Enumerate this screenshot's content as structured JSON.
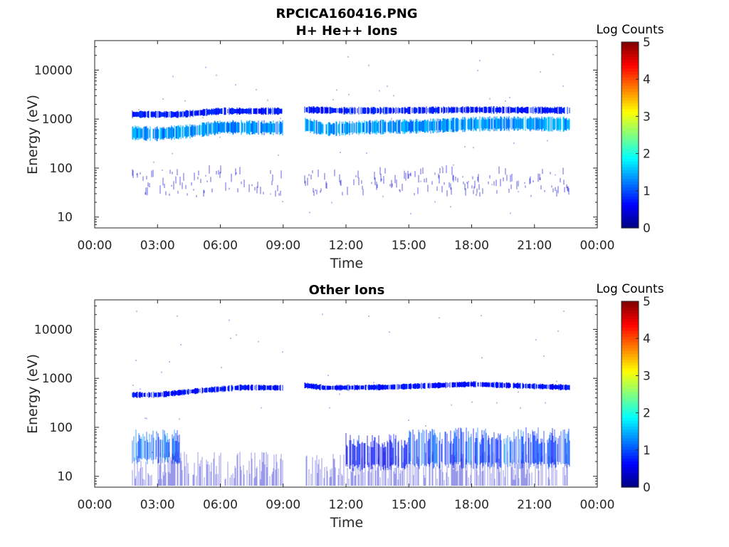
{
  "figure": {
    "filename": "RPCICA160416.PNG"
  },
  "chart_data": [
    {
      "type": "heatmap",
      "title": "H+ He++ Ions",
      "xlabel": "Time",
      "ylabel": "Energy (eV)",
      "x_ticks": [
        "00:00",
        "03:00",
        "06:00",
        "09:00",
        "12:00",
        "15:00",
        "18:00",
        "21:00",
        "00:00"
      ],
      "xlim_hours": [
        0,
        24
      ],
      "y_scale": "log",
      "y_ticks": [
        10,
        100,
        1000,
        10000
      ],
      "ylim": [
        6,
        40000
      ],
      "colorbar": {
        "label": "Log Counts",
        "range": [
          0,
          5
        ],
        "ticks": [
          "0",
          "1",
          "2",
          "3",
          "4",
          "5"
        ]
      },
      "data_coverage_hours": [
        [
          1.8,
          9.0
        ],
        [
          10.0,
          22.7
        ]
      ],
      "bands": [
        {
          "name": "main",
          "points": [
            [
              1.8,
              520
            ],
            [
              3.0,
              500
            ],
            [
              4.5,
              560
            ],
            [
              6.0,
              680
            ],
            [
              9.0,
              660
            ],
            [
              10.0,
              780
            ],
            [
              11.0,
              620
            ],
            [
              13.0,
              680
            ],
            [
              16.0,
              720
            ],
            [
              18.0,
              790
            ],
            [
              20.0,
              810
            ],
            [
              22.7,
              780
            ]
          ],
          "width_dex": 0.12,
          "level": 1.35
        },
        {
          "name": "secondary",
          "points": [
            [
              1.8,
              1250
            ],
            [
              4.0,
              1240
            ],
            [
              6.0,
              1450
            ],
            [
              9.0,
              1450
            ],
            [
              10.0,
              1550
            ],
            [
              12.0,
              1480
            ],
            [
              15.0,
              1500
            ],
            [
              18.0,
              1550
            ],
            [
              22.7,
              1500
            ]
          ],
          "width_dex": 0.06,
          "level": 0.75
        }
      ],
      "low_energy_scatter": {
        "e_min": 25,
        "e_max": 80,
        "level": 0.4
      }
    },
    {
      "type": "heatmap",
      "title": "Other Ions",
      "xlabel": "Time",
      "ylabel": "Energy (eV)",
      "x_ticks": [
        "00:00",
        "03:00",
        "06:00",
        "09:00",
        "12:00",
        "15:00",
        "18:00",
        "21:00",
        "00:00"
      ],
      "xlim_hours": [
        0,
        24
      ],
      "y_scale": "log",
      "y_ticks": [
        10,
        100,
        1000,
        10000
      ],
      "ylim": [
        6,
        40000
      ],
      "colorbar": {
        "label": "Log Counts",
        "range": [
          0,
          5
        ],
        "ticks": [
          "0",
          "1",
          "2",
          "3",
          "4",
          "5"
        ]
      },
      "data_coverage_hours": [
        [
          1.8,
          9.0
        ],
        [
          10.0,
          22.7
        ]
      ],
      "bands": [
        {
          "name": "upper",
          "points": [
            [
              1.8,
              460
            ],
            [
              3.0,
              460
            ],
            [
              5.0,
              560
            ],
            [
              7.0,
              650
            ],
            [
              9.0,
              640
            ],
            [
              10.0,
              720
            ],
            [
              11.0,
              640
            ],
            [
              14.0,
              660
            ],
            [
              18.0,
              760
            ],
            [
              22.7,
              650
            ]
          ],
          "width_dex": 0.05,
          "level": 0.7
        }
      ],
      "low_energy_activity": [
        {
          "t0": 1.8,
          "t1": 4.2,
          "e_min": 25,
          "e_max": 90,
          "level": 1.1
        },
        {
          "t0": 12.0,
          "t1": 15.0,
          "e_min": 18,
          "e_max": 80,
          "level": 0.7
        },
        {
          "t0": 15.0,
          "t1": 22.7,
          "e_min": 20,
          "e_max": 100,
          "level": 1.0
        }
      ]
    }
  ]
}
